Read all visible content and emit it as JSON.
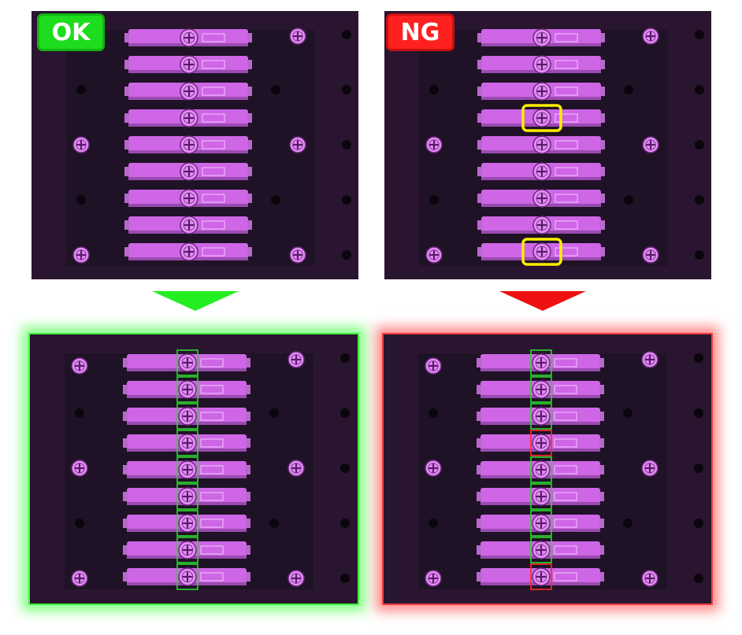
{
  "labels": {
    "ok": "OK",
    "ng": "NG"
  },
  "colors": {
    "background": "#2a1530",
    "plate": "#1f1226",
    "connector": "#d86cf0",
    "ok": "#22ee22",
    "ng": "#ee1010",
    "highlight": "#ffee00"
  },
  "inspection": {
    "screw_count": 9,
    "ok_sample": {
      "result": "OK",
      "defective_positions": []
    },
    "ng_sample": {
      "result": "NG",
      "defective_positions": [
        4,
        9
      ]
    }
  }
}
